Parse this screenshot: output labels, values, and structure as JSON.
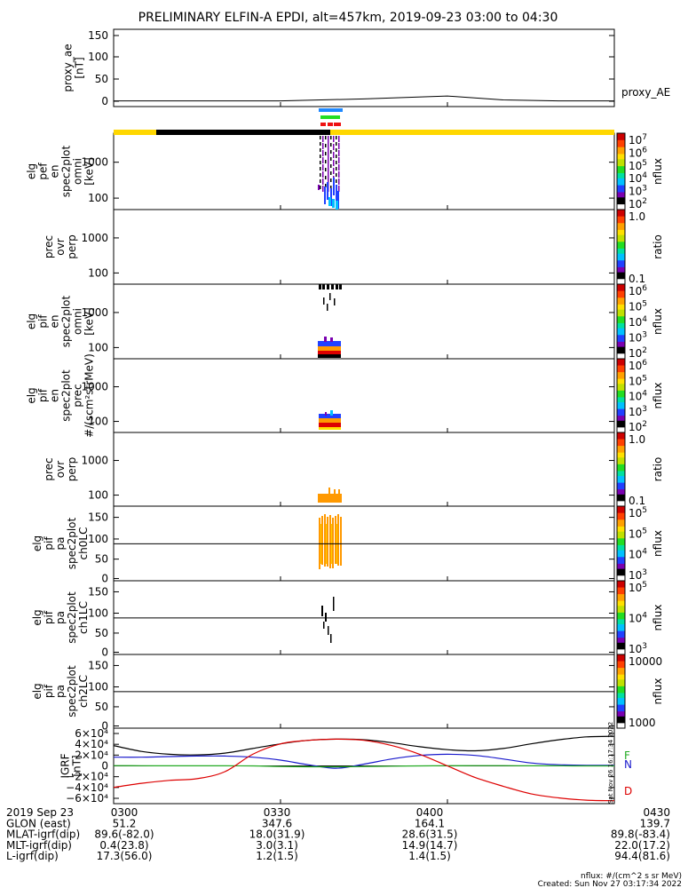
{
  "title": "PRELIMINARY ELFIN-A EPDI, alt=457km, 2019-09-23 03:00 to 04:30",
  "colors": {
    "yellow_bar": "#ffd700",
    "black_bar": "#000000",
    "blue_bar": "#1e88ff",
    "green_bar": "#22dd22",
    "red_bar": "#ee1111",
    "igrf_black": "#000000",
    "igrf_red": "#dd0000",
    "igrf_blue": "#1a1acc",
    "igrf_green": "#22aa22",
    "orange": "#ff9900"
  },
  "chart_data": [
    {
      "type": "line",
      "panel": "proxy_ae",
      "ylabel": [
        "proxy_ae",
        "[nT]"
      ],
      "ylim": [
        0,
        160
      ],
      "yticks": [
        "150",
        "100",
        "50",
        "0"
      ],
      "series": [
        {
          "name": "proxy_AE",
          "x": [
            0,
            30,
            45,
            60,
            70,
            80,
            90
          ],
          "y": [
            10,
            10,
            14,
            20,
            12,
            10,
            10
          ]
        }
      ]
    },
    {
      "type": "heatmap",
      "panel": "elg_pef_omni",
      "ylabel": [
        "elg",
        "pef",
        "en",
        "spec2plot",
        "omni",
        "[keV]"
      ],
      "yticks": [
        "1000",
        "100"
      ],
      "colorbar": {
        "labels": [
          "10",
          "10",
          "10",
          "10",
          "10",
          "10"
        ],
        "exponents": [
          "7",
          "6",
          "5",
          "4",
          "3",
          "2"
        ],
        "title": "nflux"
      }
    },
    {
      "type": "heatmap",
      "panel": "prec_ovr_perp_1",
      "ylabel": [
        "prec",
        "ovr",
        "perp"
      ],
      "yticks": [
        "1000",
        "100"
      ],
      "colorbar": {
        "labels": [
          "1.0",
          "0.1"
        ],
        "title": "ratio"
      }
    },
    {
      "type": "heatmap",
      "panel": "elg_pif_omni",
      "ylabel": [
        "elg",
        "pif",
        "en",
        "spec2plot",
        "omni",
        "[keV]"
      ],
      "yticks": [
        "1000",
        "100"
      ],
      "colorbar": {
        "labels": [
          "10",
          "10",
          "10",
          "10",
          "10"
        ],
        "exponents": [
          "6",
          "5",
          "4",
          "3",
          "2"
        ],
        "title": "nflux"
      }
    },
    {
      "type": "heatmap",
      "panel": "elg_pif_prec",
      "ylabel": [
        "elg",
        "pif",
        "en",
        "spec2plot",
        "prec",
        "#/(scm²strMeV)"
      ],
      "yticks": [
        "1000",
        "100"
      ],
      "colorbar": {
        "labels": [
          "10",
          "10",
          "10",
          "10",
          "10"
        ],
        "exponents": [
          "6",
          "5",
          "4",
          "3",
          "2"
        ],
        "title": "nflux"
      }
    },
    {
      "type": "heatmap",
      "panel": "prec_ovr_perp_2",
      "ylabel": [
        "prec",
        "ovr",
        "perp"
      ],
      "yticks": [
        "1000",
        "100"
      ],
      "colorbar": {
        "labels": [
          "1.0",
          "0.1"
        ],
        "title": "ratio"
      }
    },
    {
      "type": "heatmap",
      "panel": "elg_pif_pa_ch0LC",
      "ylabel": [
        "elg",
        "pif",
        "pa",
        "spec2plot",
        "ch0LC"
      ],
      "yticks": [
        "150",
        "100",
        "50",
        "0"
      ],
      "colorbar": {
        "labels": [
          "10",
          "10",
          "10",
          "10"
        ],
        "exponents": [
          "5",
          "5",
          "4",
          "3"
        ],
        "title": "nflux"
      }
    },
    {
      "type": "heatmap",
      "panel": "elg_pif_pa_ch1LC",
      "ylabel": [
        "elg",
        "pif",
        "pa",
        "spec2plot",
        "ch1LC"
      ],
      "yticks": [
        "150",
        "100",
        "50",
        "0"
      ],
      "colorbar": {
        "labels": [
          "10",
          "10",
          "10"
        ],
        "exponents": [
          "5",
          "4",
          "3"
        ],
        "title": "nflux"
      }
    },
    {
      "type": "heatmap",
      "panel": "elg_pif_pa_ch2LC",
      "ylabel": [
        "elg",
        "pif",
        "pa",
        "spec2plot",
        "ch2LC"
      ],
      "yticks": [
        "150",
        "100",
        "50",
        "0"
      ],
      "colorbar": {
        "labels": [
          "10000",
          "1000"
        ],
        "title": "nflux"
      }
    },
    {
      "type": "line",
      "panel": "igrf",
      "ylabel": [
        "IGRF",
        "[nT]"
      ],
      "ylim": [
        -65000,
        65000
      ],
      "yticks": [
        "6×10⁴",
        "4×10⁴",
        "2×10⁴",
        "0",
        "−2×10⁴",
        "−4×10⁴",
        "−6×10⁴"
      ],
      "x": [
        0,
        5,
        10,
        15,
        20,
        25,
        30,
        35,
        40,
        45,
        50,
        55,
        60,
        65,
        70,
        75,
        80,
        85,
        90
      ],
      "series": [
        {
          "name": "F",
          "color_key": "igrf_black",
          "y": [
            35000,
            25000,
            20000,
            19000,
            22000,
            30000,
            38000,
            44000,
            46000,
            45000,
            40000,
            33000,
            28000,
            26000,
            30000,
            38000,
            45000,
            50000,
            51000
          ]
        },
        {
          "name": "N",
          "color_key": "igrf_blue",
          "y": [
            15000,
            15000,
            16000,
            17000,
            17000,
            15000,
            10000,
            2000,
            -4000,
            3000,
            12000,
            18000,
            20000,
            18000,
            12000,
            5000,
            2000,
            1000,
            1000
          ]
        },
        {
          "name": "E",
          "color_key": "igrf_green",
          "y": [
            500,
            300,
            200,
            200,
            100,
            0,
            -1000,
            -1500,
            -1500,
            -1000,
            -500,
            0,
            300,
            500,
            400,
            200,
            100,
            0,
            0
          ]
        },
        {
          "name": "D",
          "color_key": "igrf_red",
          "y": [
            -37000,
            -30000,
            -25000,
            -22000,
            -10000,
            20000,
            38000,
            44000,
            46000,
            44000,
            35000,
            20000,
            0,
            -20000,
            -35000,
            -48000,
            -55000,
            -59000,
            -60000
          ]
        }
      ]
    }
  ],
  "proxy_label": "proxy_AE",
  "igrf_legend": [
    "F",
    "N",
    "D"
  ],
  "igrf_side_text": "Sat Nov 26 16:17:34 2022",
  "x_ticks": [
    {
      "label": "0300",
      "frac": 0.0
    },
    {
      "label": "0330",
      "frac": 0.3333
    },
    {
      "label": "0400",
      "frac": 0.6667
    },
    {
      "label": "0430",
      "frac": 1.0
    }
  ],
  "footer_rows": [
    {
      "label": "2019 Sep 23",
      "values": [
        "0300",
        "0330",
        "0400",
        "0430"
      ]
    },
    {
      "label": "GLON (east)",
      "values": [
        "51.2",
        "347.6",
        "164.1",
        "139.7"
      ]
    },
    {
      "label": "MLAT-igrf(dip)",
      "values": [
        "89.6(-82.0)",
        "18.0(31.9)",
        "28.6(31.5)",
        "89.8(-83.4)"
      ]
    },
    {
      "label": "MLT-igrf(dip)",
      "values": [
        "0.4(23.8)",
        "3.0(3.1)",
        "14.9(14.7)",
        "22.0(17.2)"
      ]
    },
    {
      "label": "L-igrf(dip)",
      "values": [
        "17.3(56.0)",
        "1.2(1.5)",
        "1.4(1.5)",
        "94.4(81.6)"
      ]
    }
  ],
  "footnote_units": "nflux: #/(cm^2 s sr MeV)",
  "footnote_created": "Created: Sun Nov 27 03:17:34 2022"
}
